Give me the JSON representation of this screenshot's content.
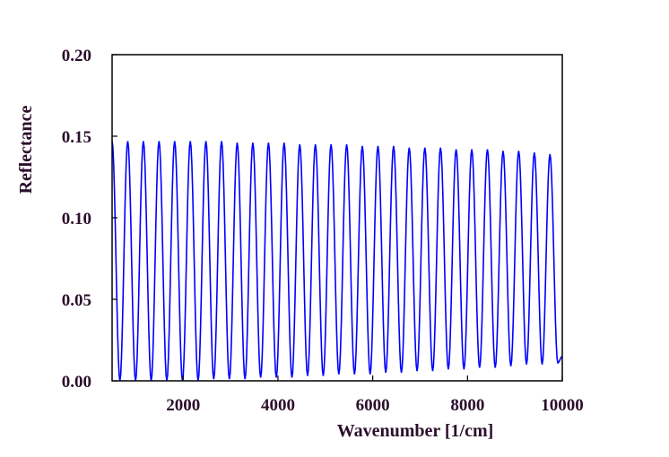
{
  "chart_data": {
    "type": "line",
    "title": "",
    "xlabel": "Wavenumber [1/cm]",
    "ylabel": "Reflectance",
    "xlim": [
      500,
      10000
    ],
    "ylim": [
      0,
      0.2
    ],
    "xticks": [
      2000,
      4000,
      6000,
      8000,
      10000
    ],
    "xtick_labels": [
      "2000",
      "4000",
      "6000",
      "8000",
      "10000"
    ],
    "yticks": [
      0,
      0.05,
      0.1,
      0.15,
      0.2
    ],
    "ytick_labels": [
      "0.00",
      "0.05",
      "0.10",
      "0.15",
      "0.20"
    ],
    "grid": false,
    "legend": "none",
    "series": [
      {
        "color": "#0000ff",
        "description": "interference fringes oscillating between ~0 and ~0.147; period ~330 1/cm; maxima near 0.147 at low wavenumber decreasing to ~0.139 at 9800, minima rising from 0.0 to ~0.012",
        "x": [
          500,
          665,
          830,
          995,
          1160,
          1325,
          1490,
          1655,
          1820,
          1985,
          2150,
          2315,
          2480,
          2645,
          2810,
          2975,
          3140,
          3305,
          3470,
          3635,
          3800,
          3965,
          4130,
          4295,
          4460,
          4625,
          4790,
          4955,
          5120,
          5285,
          5450,
          5615,
          5780,
          5945,
          6110,
          6275,
          6440,
          6605,
          6770,
          6935,
          7100,
          7265,
          7430,
          7595,
          7760,
          7925,
          8090,
          8255,
          8420,
          8585,
          8750,
          8915,
          9080,
          9245,
          9410,
          9575,
          9740,
          9905,
          10000
        ],
        "y": [
          0.147,
          0.0,
          0.147,
          0.0,
          0.147,
          0.0,
          0.147,
          0.0,
          0.147,
          0.0,
          0.147,
          0.0,
          0.147,
          0.001,
          0.147,
          0.001,
          0.146,
          0.001,
          0.146,
          0.002,
          0.146,
          0.002,
          0.146,
          0.002,
          0.145,
          0.003,
          0.145,
          0.003,
          0.145,
          0.004,
          0.145,
          0.004,
          0.144,
          0.004,
          0.144,
          0.005,
          0.144,
          0.005,
          0.143,
          0.006,
          0.143,
          0.006,
          0.143,
          0.007,
          0.142,
          0.007,
          0.142,
          0.008,
          0.142,
          0.008,
          0.141,
          0.009,
          0.141,
          0.01,
          0.14,
          0.01,
          0.139,
          0.011,
          0.015
        ]
      }
    ]
  }
}
